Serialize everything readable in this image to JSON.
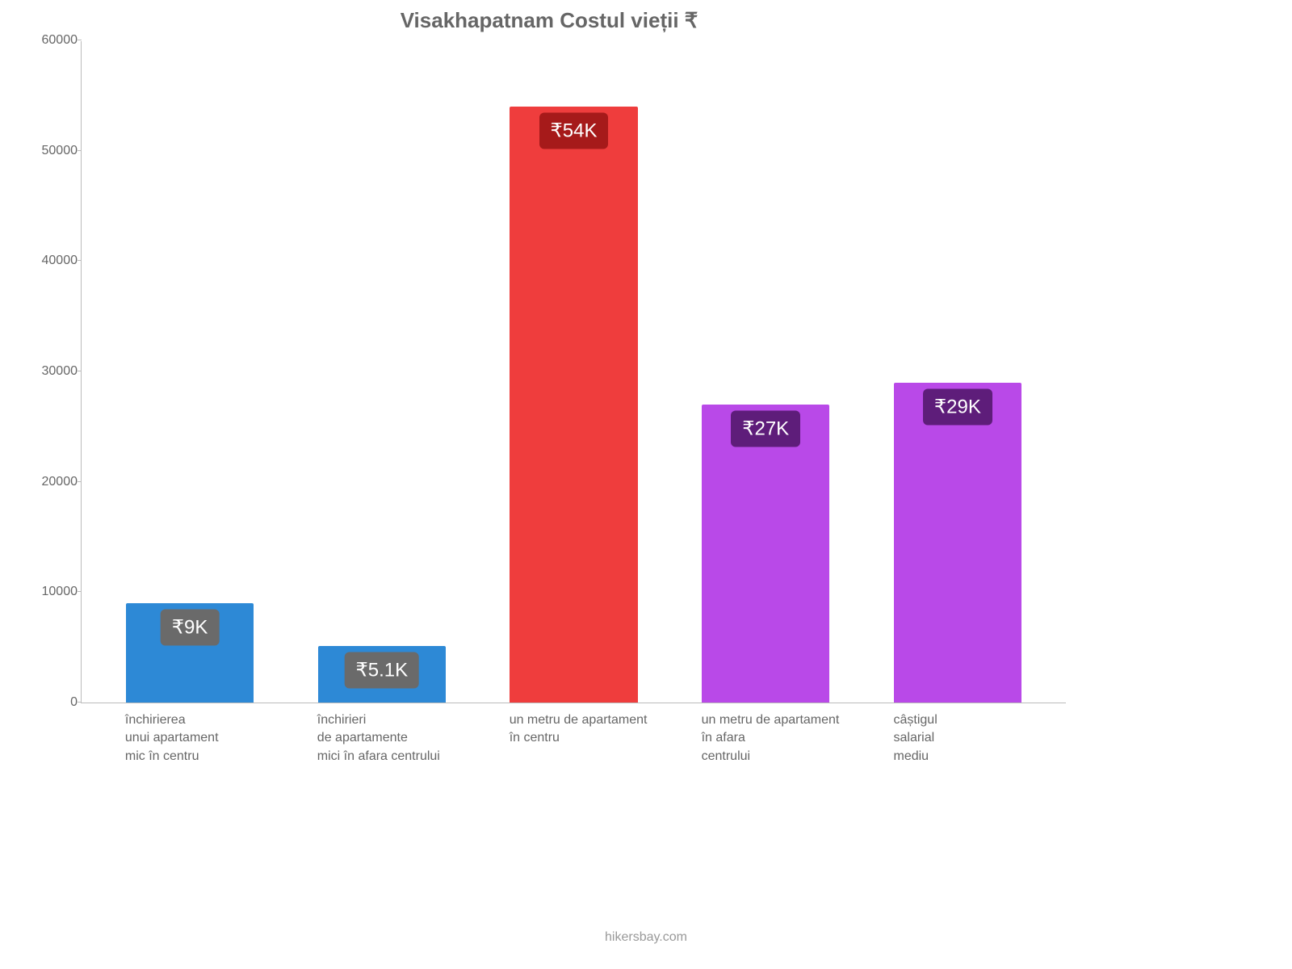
{
  "chart": {
    "type": "bar",
    "title": "Visakhapatnam Costul vieții ₹",
    "title_color": "#666666",
    "title_fontsize": 26,
    "background_color": "#ffffff",
    "axis_color": "#bbbbbb",
    "tick_label_color": "#666666",
    "tick_fontsize": 16,
    "ylim_min": 0,
    "ylim_max": 60000,
    "ytick_step": 10000,
    "yticks": [
      {
        "value": 0,
        "label": "0"
      },
      {
        "value": 10000,
        "label": "10000"
      },
      {
        "value": 20000,
        "label": "20000"
      },
      {
        "value": 30000,
        "label": "30000"
      },
      {
        "value": 40000,
        "label": "40000"
      },
      {
        "value": 50000,
        "label": "50000"
      },
      {
        "value": 60000,
        "label": "60000"
      }
    ],
    "bar_width_pct": 13,
    "bar_gap_pct": 6.5,
    "bars": [
      {
        "category": "închirierea\nunui apartament\nmic în centru",
        "value": 9000,
        "value_label": "₹9K",
        "bar_color": "#2d89d6",
        "label_bg": "#6a6a6a",
        "label_text_color": "#ffffff"
      },
      {
        "category": "închirieri\nde apartamente\nmici în afara centrului",
        "value": 5100,
        "value_label": "₹5.1K",
        "bar_color": "#2d89d6",
        "label_bg": "#6a6a6a",
        "label_text_color": "#ffffff"
      },
      {
        "category": "un metru de apartament\nîn centru",
        "value": 54000,
        "value_label": "₹54K",
        "bar_color": "#ef3d3d",
        "label_bg": "#a61a1a",
        "label_text_color": "#ffffff"
      },
      {
        "category": "un metru de apartament\nîn afara\ncentrului",
        "value": 27000,
        "value_label": "₹27K",
        "bar_color": "#b949e8",
        "label_bg": "#5e1d7a",
        "label_text_color": "#ffffff"
      },
      {
        "category": "câștigul\nsalarial\nmediu",
        "value": 29000,
        "value_label": "₹29K",
        "bar_color": "#b949e8",
        "label_bg": "#5e1d7a",
        "label_text_color": "#ffffff"
      }
    ],
    "xlabel_fontsize": 16,
    "xlabel_color": "#666666",
    "value_label_fontsize": 24,
    "attribution": "hikersbay.com",
    "attribution_color": "#999999",
    "attribution_fontsize": 16
  }
}
